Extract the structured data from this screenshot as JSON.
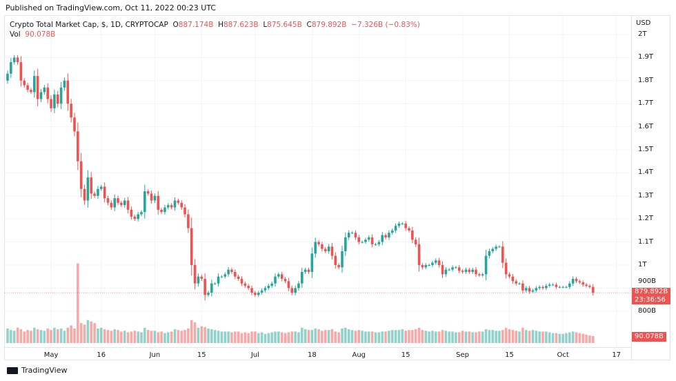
{
  "published": "Published on TradingView.com, Oct 11, 2022 00:23 UTC",
  "legend": {
    "symbol": "Crypto Total Market Cap, $, 1D, CRYPTOCAP",
    "o_label": "O",
    "o": "887.174B",
    "h_label": "H",
    "h": "887.623B",
    "l_label": "L",
    "l": "875.645B",
    "c_label": "C",
    "c": "879.892B",
    "change": "−7.326B (−0.83%)",
    "vol_label": "Vol",
    "vol": "90.078B"
  },
  "price_axis": {
    "currency": "USD",
    "ticks": [
      {
        "label": "2T",
        "value": 2000
      },
      {
        "label": "1.9T",
        "value": 1900
      },
      {
        "label": "1.8T",
        "value": 1800
      },
      {
        "label": "1.7T",
        "value": 1700
      },
      {
        "label": "1.6T",
        "value": 1600
      },
      {
        "label": "1.5T",
        "value": 1500
      },
      {
        "label": "1.4T",
        "value": 1400
      },
      {
        "label": "1.3T",
        "value": 1300
      },
      {
        "label": "1.2T",
        "value": 1200
      },
      {
        "label": "1.1T",
        "value": 1100
      },
      {
        "label": "1T",
        "value": 1000
      },
      {
        "label": "900B",
        "value": 900
      },
      {
        "label": "800B",
        "value": 800
      }
    ],
    "last_price_label": "879.892B",
    "countdown": "23:36:56",
    "last_volume_label": "90.078B"
  },
  "time_axis": [
    {
      "label": "May",
      "date": "2022-05-01"
    },
    {
      "label": "16",
      "date": "2022-05-16"
    },
    {
      "label": "Jun",
      "date": "2022-06-01"
    },
    {
      "label": "15",
      "date": "2022-06-15"
    },
    {
      "label": "Jul",
      "date": "2022-07-01"
    },
    {
      "label": "18",
      "date": "2022-07-18"
    },
    {
      "label": "Aug",
      "date": "2022-08-01"
    },
    {
      "label": "15",
      "date": "2022-08-15"
    },
    {
      "label": "Sep",
      "date": "2022-09-01"
    },
    {
      "label": "15",
      "date": "2022-09-15"
    },
    {
      "label": "Oct",
      "date": "2022-10-01"
    },
    {
      "label": "17",
      "date": "2022-10-17"
    }
  ],
  "colors": {
    "up": "#26a69a",
    "down": "#ef5350",
    "grid": "#f0f3fa"
  },
  "chart_data": {
    "type": "candlestick",
    "unit": "B USD",
    "first_open": 1800,
    "closes": [
      1830,
      1880,
      1900,
      1880,
      1800,
      1780,
      1760,
      1750,
      1820,
      1720,
      1750,
      1770,
      1720,
      1680,
      1740,
      1700,
      1770,
      1800,
      1700,
      1640,
      1580,
      1450,
      1330,
      1280,
      1380,
      1310,
      1300,
      1330,
      1340,
      1290,
      1270,
      1250,
      1290,
      1270,
      1260,
      1280,
      1240,
      1210,
      1200,
      1220,
      1230,
      1320,
      1310,
      1280,
      1300,
      1240,
      1230,
      1250,
      1260,
      1250,
      1280,
      1270,
      1250,
      1220,
      1160,
      1000,
      920,
      950,
      940,
      870,
      880,
      920,
      920,
      950,
      950,
      960,
      980,
      970,
      950,
      940,
      920,
      910,
      900,
      880,
      870,
      880,
      890,
      900,
      910,
      920,
      950,
      960,
      940,
      930,
      900,
      880,
      900,
      920,
      970,
      980,
      970,
      1050,
      1100,
      1090,
      1070,
      1060,
      1080,
      1040,
      1000,
      990,
      1060,
      1120,
      1140,
      1140,
      1120,
      1100,
      1100,
      1110,
      1120,
      1090,
      1090,
      1100,
      1130,
      1120,
      1140,
      1150,
      1170,
      1180,
      1180,
      1160,
      1150,
      1110,
      1090,
      1000,
      990,
      1000,
      1000,
      1010,
      1020,
      1000,
      960,
      980,
      980,
      990,
      990,
      975,
      970,
      980,
      970,
      980,
      960,
      955,
      960,
      1040,
      1060,
      1070,
      1080,
      1080,
      1010,
      960,
      950,
      930,
      920,
      920,
      890,
      900,
      885,
      890,
      900,
      905,
      900,
      910,
      915,
      915,
      905,
      905,
      905,
      905,
      920,
      940,
      930,
      925,
      915,
      910,
      905,
      880
    ],
    "volumes": [
      190,
      170,
      160,
      200,
      180,
      150,
      170,
      160,
      200,
      180,
      170,
      160,
      190,
      170,
      200,
      180,
      190,
      160,
      200,
      230,
      190,
      1040,
      260,
      240,
      300,
      280,
      260,
      190,
      200,
      180,
      170,
      160,
      180,
      170,
      150,
      160,
      140,
      150,
      160,
      150,
      140,
      200,
      170,
      160,
      160,
      140,
      150,
      130,
      140,
      150,
      180,
      170,
      160,
      170,
      190,
      300,
      270,
      200,
      220,
      210,
      190,
      180,
      170,
      160,
      150,
      150,
      150,
      140,
      150,
      150,
      130,
      140,
      130,
      150,
      150,
      130,
      140,
      120,
      130,
      140,
      150,
      150,
      140,
      130,
      140,
      150,
      150,
      140,
      200,
      180,
      170,
      170,
      190,
      180,
      160,
      170,
      170,
      180,
      150,
      140,
      190,
      200,
      180,
      170,
      160,
      170,
      160,
      150,
      150,
      150,
      140,
      140,
      150,
      150,
      160,
      170,
      170,
      170,
      180,
      160,
      170,
      170,
      180,
      200,
      170,
      160,
      150,
      160,
      150,
      150,
      170,
      160,
      150,
      150,
      140,
      140,
      160,
      150,
      150,
      140,
      140,
      150,
      150,
      180,
      170,
      170,
      160,
      160,
      170,
      200,
      180,
      170,
      160,
      150,
      200,
      170,
      160,
      170,
      160,
      150,
      150,
      150,
      140,
      130,
      130,
      120,
      120,
      130,
      140,
      150,
      140,
      130,
      120,
      110,
      100,
      90.078
    ]
  }
}
